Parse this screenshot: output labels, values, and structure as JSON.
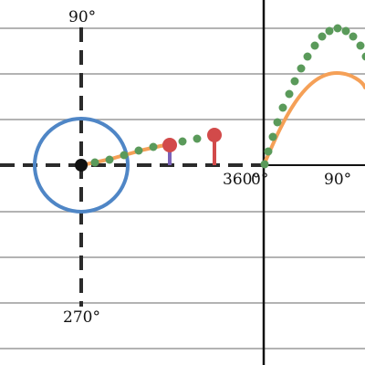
{
  "colors": {
    "background": "#ffffff",
    "grid": "#9a9a9a",
    "axis": "#111111",
    "dashed_axis": "#2b2b2b",
    "unit_circle": "#4f86c6",
    "sine_curve": "#f5a057",
    "dots": "#5a9a5a",
    "point_marker": "#d24a4a",
    "blue_stem": "#7a62b8",
    "red_stem": "#d24a4a"
  },
  "labels": {
    "top": "90°",
    "bottom": "270°",
    "left_end": "360°",
    "zero": "0°",
    "right_90": "90°"
  }
}
